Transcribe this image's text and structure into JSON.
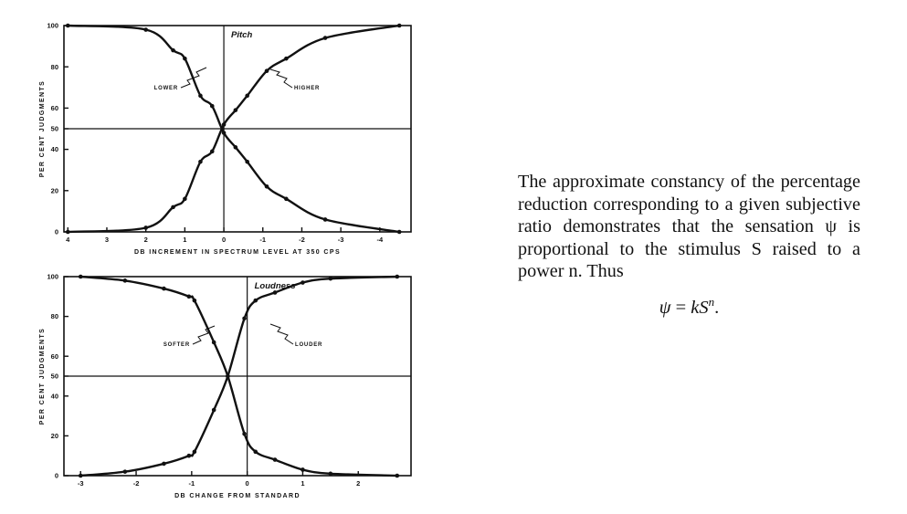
{
  "chart_data": [
    {
      "type": "line",
      "title": "Pitch",
      "xlabel": "DB INCREMENT IN SPECTRUM LEVEL AT 350 CPS",
      "ylabel": "PER CENT JUDGMENTS",
      "xlim": [
        4.1,
        -4.8
      ],
      "ylim": [
        0,
        100
      ],
      "x_ticks": [
        4,
        3,
        2,
        1,
        0,
        -1,
        -2,
        -3,
        -4
      ],
      "x_tick_labels": [
        "4",
        "3",
        "2",
        "1",
        "0",
        "-1",
        "-2",
        "-3",
        "-4"
      ],
      "y_ticks": [
        0,
        20,
        40,
        50,
        60,
        80,
        100
      ],
      "y_tick_labels": [
        "0",
        "20",
        "40",
        "50",
        "60",
        "80",
        "100"
      ],
      "grid": false,
      "reference_lines": {
        "x": 0,
        "y": 50
      },
      "series": [
        {
          "name": "LOWER",
          "x": [
            4,
            2,
            1.3,
            1.0,
            0.6,
            0.3,
            0,
            -0.3,
            -0.6,
            -1.1,
            -1.6,
            -2.6,
            -4.5
          ],
          "y": [
            100,
            98,
            88,
            84,
            66,
            61,
            48,
            41,
            34,
            22,
            16,
            6,
            0
          ]
        },
        {
          "name": "HIGHER",
          "x": [
            4,
            2,
            1.3,
            1.0,
            0.6,
            0.3,
            0,
            -0.3,
            -0.6,
            -1.1,
            -1.6,
            -2.6,
            -4.5
          ],
          "y": [
            0,
            2,
            12,
            16,
            34,
            39,
            52,
            59,
            66,
            78,
            84,
            94,
            100
          ]
        }
      ]
    },
    {
      "type": "line",
      "title": "Loudness",
      "xlabel": "DB CHANGE FROM STANDARD",
      "ylabel": "PER CENT JUDGMENTS",
      "xlim": [
        -3.3,
        2.95
      ],
      "ylim": [
        0,
        100
      ],
      "x_ticks": [
        -3,
        -2,
        -1,
        0,
        1,
        2
      ],
      "x_tick_labels": [
        "-3",
        "-2",
        "-1",
        "0",
        "1",
        "2"
      ],
      "y_ticks": [
        0,
        20,
        40,
        50,
        60,
        80,
        100
      ],
      "y_tick_labels": [
        "0",
        "20",
        "40",
        "50",
        "60",
        "80",
        "100"
      ],
      "grid": false,
      "reference_lines": {
        "x": 0,
        "y": 50
      },
      "series": [
        {
          "name": "SOFTER",
          "x": [
            -3,
            -2.2,
            -1.5,
            -1.05,
            -0.95,
            -0.6,
            -0.35,
            -0.05,
            0.15,
            0.5,
            1.0,
            1.5,
            2.7
          ],
          "y": [
            100,
            98,
            94,
            90,
            88,
            67,
            50,
            21,
            12,
            8,
            3,
            1,
            0
          ]
        },
        {
          "name": "LOUDER",
          "x": [
            -3,
            -2.2,
            -1.5,
            -1.05,
            -0.95,
            -0.6,
            -0.35,
            -0.05,
            0.15,
            0.5,
            1.0,
            1.5,
            2.7
          ],
          "y": [
            0,
            2,
            6,
            10,
            12,
            33,
            50,
            79,
            88,
            92,
            97,
            99,
            100
          ]
        }
      ]
    }
  ],
  "text": {
    "paragraph": "The approximate constancy of the percentage reduction corresponding to a given subjective ratio demonstrates that the sensation ψ is proportional to the stimulus S raised to a power n. Thus",
    "formula_lhs": "ψ",
    "formula_eq": " = ",
    "formula_rhs": "kS",
    "formula_exp": "n",
    "formula_end": "."
  }
}
